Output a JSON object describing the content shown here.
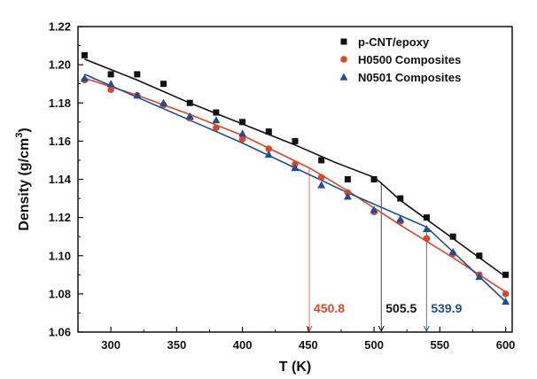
{
  "chart_data": {
    "type": "scatter",
    "xlabel": "T (K)",
    "ylabel_main": "Density (g/cm",
    "ylabel_sup": "3",
    "ylabel_tail": ")",
    "xlim": [
      275,
      605
    ],
    "ylim": [
      1.06,
      1.22
    ],
    "xticks": [
      300,
      350,
      400,
      450,
      500,
      550,
      600
    ],
    "yticks": [
      1.06,
      1.08,
      1.1,
      1.12,
      1.14,
      1.16,
      1.18,
      1.2,
      1.22
    ],
    "grid": false,
    "legend_position": "top-right",
    "series": [
      {
        "name": "p-CNT/epoxy",
        "marker": "square",
        "color": "#111111",
        "points": [
          [
            280,
            1.205
          ],
          [
            300,
            1.195
          ],
          [
            320,
            1.195
          ],
          [
            340,
            1.19
          ],
          [
            360,
            1.18
          ],
          [
            380,
            1.175
          ],
          [
            400,
            1.17
          ],
          [
            420,
            1.165
          ],
          [
            440,
            1.16
          ],
          [
            460,
            1.15
          ],
          [
            480,
            1.14
          ],
          [
            500,
            1.14
          ],
          [
            520,
            1.13
          ],
          [
            540,
            1.12
          ],
          [
            560,
            1.11
          ],
          [
            580,
            1.1
          ],
          [
            600,
            1.09
          ]
        ],
        "fit": [
          [
            280,
            1.203
          ],
          [
            320,
            1.192
          ],
          [
            360,
            1.18
          ],
          [
            400,
            1.169
          ],
          [
            440,
            1.158
          ],
          [
            470,
            1.149
          ],
          [
            500,
            1.141
          ],
          [
            505.5,
            1.138
          ],
          [
            520,
            1.129
          ],
          [
            540,
            1.119
          ],
          [
            570,
            1.104
          ],
          [
            600,
            1.089
          ]
        ]
      },
      {
        "name": "H0500 Composites",
        "marker": "circle",
        "color": "#d9472b",
        "points": [
          [
            280,
            1.192
          ],
          [
            300,
            1.187
          ],
          [
            320,
            1.184
          ],
          [
            340,
            1.179
          ],
          [
            360,
            1.172
          ],
          [
            380,
            1.167
          ],
          [
            400,
            1.161
          ],
          [
            420,
            1.156
          ],
          [
            440,
            1.148
          ],
          [
            460,
            1.141
          ],
          [
            480,
            1.133
          ],
          [
            500,
            1.123
          ],
          [
            520,
            1.118
          ],
          [
            540,
            1.109
          ],
          [
            560,
            1.101
          ],
          [
            580,
            1.09
          ],
          [
            600,
            1.08
          ]
        ],
        "fit": [
          [
            280,
            1.193
          ],
          [
            320,
            1.184
          ],
          [
            360,
            1.174
          ],
          [
            400,
            1.163
          ],
          [
            450.8,
            1.146
          ],
          [
            480,
            1.134
          ],
          [
            520,
            1.116
          ],
          [
            560,
            1.099
          ],
          [
            600,
            1.081
          ]
        ]
      },
      {
        "name": "N0501 Composites",
        "marker": "triangle",
        "color": "#1f4e96",
        "points": [
          [
            280,
            1.193
          ],
          [
            300,
            1.19
          ],
          [
            320,
            1.184
          ],
          [
            340,
            1.18
          ],
          [
            360,
            1.173
          ],
          [
            380,
            1.171
          ],
          [
            400,
            1.164
          ],
          [
            420,
            1.153
          ],
          [
            440,
            1.146
          ],
          [
            460,
            1.137
          ],
          [
            480,
            1.131
          ],
          [
            500,
            1.124
          ],
          [
            520,
            1.119
          ],
          [
            540,
            1.114
          ],
          [
            560,
            1.102
          ],
          [
            580,
            1.089
          ],
          [
            600,
            1.076
          ]
        ],
        "fit": [
          [
            280,
            1.195
          ],
          [
            320,
            1.183
          ],
          [
            360,
            1.171
          ],
          [
            400,
            1.159
          ],
          [
            440,
            1.146
          ],
          [
            480,
            1.133
          ],
          [
            520,
            1.121
          ],
          [
            539.9,
            1.115
          ],
          [
            560,
            1.102
          ],
          [
            580,
            1.089
          ],
          [
            600,
            1.076
          ]
        ]
      }
    ],
    "annotations": [
      {
        "x": 450.8,
        "label": "450.8",
        "color": "#d9472b",
        "y_at": 1.146
      },
      {
        "x": 505.5,
        "label": "505.5",
        "color": "#111111",
        "y_at": 1.138
      },
      {
        "x": 539.9,
        "label": "539.9",
        "color": "#1f4e96",
        "y_at": 1.115
      }
    ]
  }
}
